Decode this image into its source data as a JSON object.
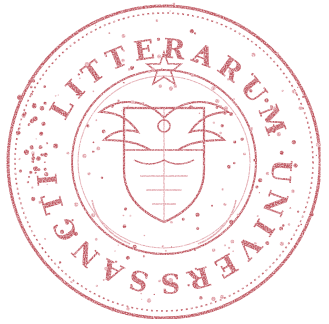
{
  "seal": {
    "ring_text": "SANCTI . LITTERARUM UNIVERSITAS",
    "ink_color": "#b0303c",
    "ink_color_light": "#d98a93",
    "icon": "university-seal-stamp"
  }
}
